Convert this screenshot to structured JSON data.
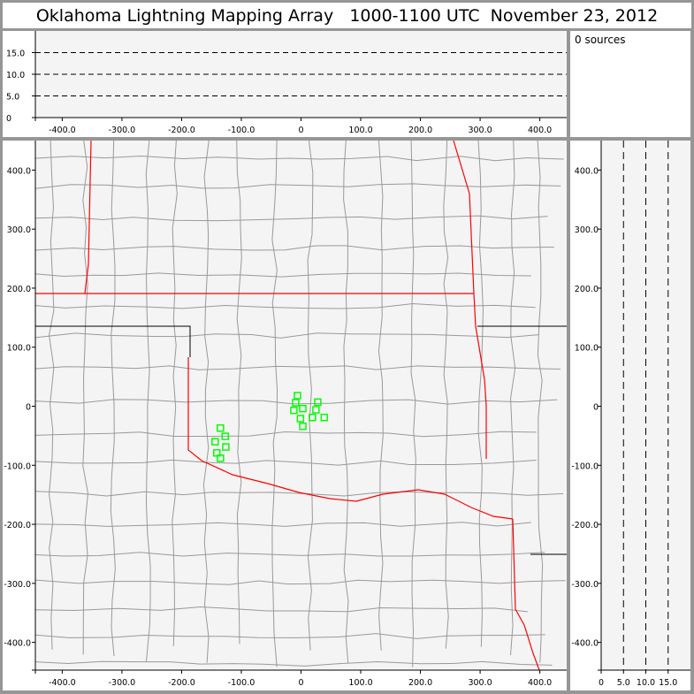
{
  "title": "Oklahoma Lightning Mapping Array   1000-1100 UTC  November 23, 2012",
  "sources_label": "0 sources",
  "colors": {
    "panel_bg": "#f4f4f4",
    "frame": "#969696",
    "source_marker": "#00ff00",
    "state_border": "#ff0000",
    "county_border": "#999999"
  },
  "chart_data": [
    {
      "type": "scatter",
      "name": "altitude-vs-east-west",
      "xlim": [
        -445,
        445
      ],
      "ylim": [
        0,
        20
      ],
      "xticks": [
        "-400.0",
        "-300.0",
        "-200.0",
        "-100.0",
        "0",
        "100.0",
        "200.0",
        "300.0",
        "400.0"
      ],
      "xtick_values": [
        -400,
        -300,
        -200,
        -100,
        0,
        100,
        200,
        300,
        400
      ],
      "yticks": [
        "0",
        "5.0",
        "10.0",
        "15.0"
      ],
      "ytick_values": [
        0,
        5,
        10,
        15
      ],
      "grid": "dashed horizontal at 5, 10, 15",
      "points": []
    },
    {
      "type": "scatter",
      "name": "plan-view-map",
      "xlim": [
        -445,
        445
      ],
      "ylim": [
        -447,
        450
      ],
      "xticks": [
        "-400.0",
        "-300.0",
        "-200.0",
        "-100.0",
        "0",
        "100.0",
        "200.0",
        "300.0",
        "400.0"
      ],
      "xtick_values": [
        -400,
        -300,
        -200,
        -100,
        0,
        100,
        200,
        300,
        400
      ],
      "yticks": [
        "400.0",
        "300.0",
        "200.0",
        "100.0",
        "0",
        "-100.0",
        "-200.0",
        "-300.0",
        "-400.0"
      ],
      "ytick_values": [
        400,
        300,
        200,
        100,
        0,
        -100,
        -200,
        -300,
        -400
      ],
      "marker": "open square",
      "points": [
        [
          -6,
          18
        ],
        [
          -9,
          6
        ],
        [
          28,
          7
        ],
        [
          -12,
          -7
        ],
        [
          3,
          -4
        ],
        [
          25,
          -6
        ],
        [
          -1,
          -21
        ],
        [
          19,
          -19
        ],
        [
          39,
          -19
        ],
        [
          3,
          -34
        ],
        [
          -135,
          -37
        ],
        [
          -127,
          -51
        ],
        [
          -144,
          -60
        ],
        [
          -126,
          -69
        ],
        [
          -141,
          -79
        ],
        [
          -135,
          -88
        ]
      ]
    },
    {
      "type": "scatter",
      "name": "north-south-vs-altitude",
      "xlim": [
        0,
        20
      ],
      "ylim": [
        -447,
        450
      ],
      "xticks": [
        "0",
        "5.0",
        "10.0",
        "15.0"
      ],
      "xtick_values": [
        0,
        5,
        10,
        15
      ],
      "yticks": [
        "400.0",
        "300.0",
        "200.0",
        "100.0",
        "0",
        "-100.0",
        "-200.0",
        "-300.0",
        "-400.0"
      ],
      "ytick_values": [
        400,
        300,
        200,
        100,
        0,
        -100,
        -200,
        -300,
        -400
      ],
      "grid": "dashed vertical at 5, 10, 15",
      "points": []
    }
  ]
}
